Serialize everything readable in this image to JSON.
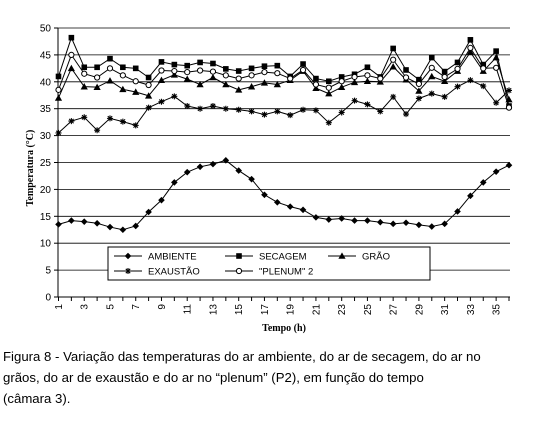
{
  "chart_data": {
    "type": "line",
    "xlabel": "Tempo (h)",
    "ylabel": "Temperatura (°C)",
    "xlim": [
      1,
      36
    ],
    "ylim": [
      0,
      50
    ],
    "yticks": [
      0,
      5,
      10,
      15,
      20,
      25,
      30,
      35,
      40,
      45,
      50
    ],
    "xticks": [
      1,
      3,
      5,
      7,
      9,
      11,
      13,
      15,
      17,
      19,
      21,
      23,
      25,
      27,
      29,
      31,
      33,
      35
    ],
    "grid": "horizontal",
    "legend_position": "lower-center",
    "x": [
      1,
      2,
      3,
      4,
      5,
      6,
      7,
      8,
      9,
      10,
      11,
      12,
      13,
      14,
      15,
      16,
      17,
      18,
      19,
      20,
      21,
      22,
      23,
      24,
      25,
      26,
      27,
      28,
      29,
      30,
      31,
      32,
      33,
      34,
      35,
      36
    ],
    "series": [
      {
        "name": "AMBIENTE",
        "marker": "diamond",
        "values": [
          13.5,
          14.2,
          14.0,
          13.7,
          13.0,
          12.5,
          13.2,
          15.8,
          18.0,
          21.3,
          23.2,
          24.2,
          24.7,
          25.4,
          23.5,
          21.9,
          19.0,
          17.6,
          16.8,
          16.2,
          14.8,
          14.4,
          14.6,
          14.2,
          14.2,
          13.9,
          13.6,
          13.8,
          13.4,
          13.1,
          13.6,
          15.9,
          18.8,
          21.3,
          23.3,
          24.5
        ]
      },
      {
        "name": "SECAGEM",
        "marker": "square",
        "values": [
          41.0,
          48.2,
          42.7,
          42.7,
          44.3,
          42.7,
          42.5,
          40.8,
          43.7,
          43.2,
          43.0,
          43.6,
          43.4,
          42.4,
          42.0,
          42.5,
          42.9,
          43.0,
          41.0,
          43.3,
          40.6,
          40.1,
          40.9,
          41.4,
          42.7,
          40.9,
          46.2,
          42.2,
          40.4,
          44.5,
          41.9,
          43.6,
          47.8,
          43.2,
          45.7,
          35.5
        ]
      },
      {
        "name": "GRÃO",
        "marker": "triangle",
        "values": [
          37.0,
          42.5,
          39.1,
          39.0,
          40.2,
          38.6,
          38.1,
          37.4,
          40.3,
          41.3,
          40.5,
          39.5,
          40.8,
          39.5,
          38.5,
          39.1,
          39.8,
          39.5,
          40.3,
          42.0,
          38.8,
          37.8,
          39.0,
          39.9,
          40.1,
          40.0,
          42.8,
          40.4,
          38.3,
          41.0,
          40.1,
          42.0,
          45.5,
          42.0,
          44.5,
          36.7
        ]
      },
      {
        "name": "EXAUSTÃO",
        "marker": "star",
        "values": [
          30.5,
          32.7,
          33.4,
          31.0,
          33.2,
          32.6,
          31.9,
          35.2,
          36.3,
          37.3,
          35.5,
          35.0,
          35.5,
          35.0,
          34.8,
          34.5,
          33.9,
          34.5,
          33.8,
          34.8,
          34.7,
          32.4,
          34.3,
          36.5,
          35.8,
          34.5,
          37.2,
          34.0,
          36.9,
          37.8,
          37.2,
          39.1,
          40.3,
          39.2,
          36.1,
          38.4
        ]
      },
      {
        "name": "\"PLENUM\" 2",
        "marker": "circle",
        "values": [
          38.5,
          45.0,
          41.5,
          40.8,
          42.5,
          41.2,
          40.1,
          39.4,
          42.1,
          42.0,
          41.8,
          42.1,
          41.9,
          41.2,
          40.6,
          41.2,
          41.8,
          41.6,
          40.6,
          42.2,
          39.5,
          38.9,
          40.1,
          40.9,
          41.2,
          40.6,
          44.1,
          40.8,
          39.6,
          42.6,
          40.9,
          42.4,
          46.3,
          42.5,
          42.6,
          35.2
        ]
      }
    ]
  },
  "caption": {
    "line1": "Figura 8 - Variação das temperaturas do ar ambiente, do ar de secagem, do ar no",
    "line2": "grãos, do ar de exaustão e do ar no “plenum” (P2), em função do tempo",
    "line3": " (câmara 3)."
  }
}
